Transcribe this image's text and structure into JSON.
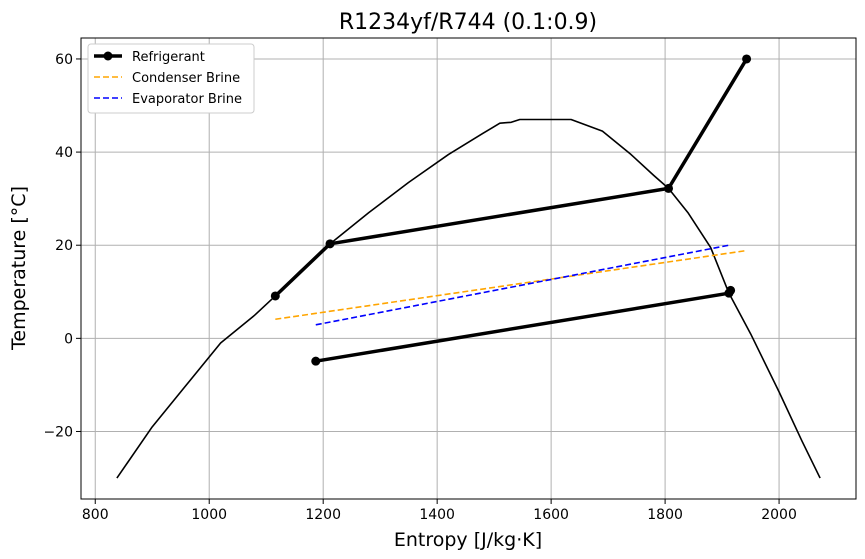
{
  "chart_data": {
    "type": "line",
    "title": "R1234yf/R744 (0.1:0.9)",
    "xlabel": "Entropy [J/kg·K]",
    "ylabel": "Temperature [°C]",
    "xlim": [
      775,
      2135
    ],
    "ylim": [
      -34.5,
      64.5
    ],
    "xticks": [
      800,
      1000,
      1200,
      1400,
      1600,
      1800,
      2000
    ],
    "yticks": [
      -20,
      0,
      20,
      40,
      60
    ],
    "xtick_labels": [
      "800",
      "1000",
      "1200",
      "1400",
      "1600",
      "1800",
      "2000"
    ],
    "ytick_labels": [
      "−20",
      "0",
      "20",
      "40",
      "60"
    ],
    "grid": true,
    "legend": {
      "position": "top-left",
      "entries": [
        "Refrigerant",
        "Condenser Brine",
        "Evaporator Brine"
      ]
    },
    "series": [
      {
        "name": "Refrigerant",
        "color": "#000000",
        "style": "solid-thick-markers",
        "segments": [
          [
            [
              1943,
              60
            ],
            [
              1806,
              32.2
            ]
          ],
          [
            [
              1806,
              32.2
            ],
            [
              1212,
              20.3
            ]
          ],
          [
            [
              1212,
              20.3
            ],
            [
              1116,
              9.1
            ]
          ],
          [
            [
              1187,
              -4.9
            ],
            [
              1912,
              9.7
            ]
          ],
          [
            [
              1915,
              10.3
            ],
            [
              1912,
              9.7
            ]
          ]
        ],
        "points": [
          [
            1943,
            60
          ],
          [
            1806,
            32.2
          ],
          [
            1212,
            20.3
          ],
          [
            1116,
            9.1
          ],
          [
            1187,
            -4.9
          ],
          [
            1912,
            9.7
          ],
          [
            1915,
            10.3
          ]
        ]
      },
      {
        "name": "Condenser Brine",
        "color": "#FFA500",
        "style": "dashed",
        "points": [
          [
            1116,
            4.1
          ],
          [
            1940,
            18.8
          ]
        ]
      },
      {
        "name": "Evaporator Brine",
        "color": "#0000FF",
        "style": "dashed",
        "points": [
          [
            1187,
            2.9
          ],
          [
            1912,
            20
          ]
        ]
      },
      {
        "name": "",
        "color": "#000000",
        "style": "solid-thin",
        "points": [
          [
            838,
            -30
          ],
          [
            900,
            -19
          ],
          [
            960,
            -10
          ],
          [
            1020,
            -1
          ],
          [
            1080,
            5
          ],
          [
            1116,
            9.1
          ],
          [
            1160,
            14.5
          ],
          [
            1212,
            20.3
          ],
          [
            1280,
            27
          ],
          [
            1350,
            33.5
          ],
          [
            1420,
            39.5
          ],
          [
            1480,
            44
          ],
          [
            1510,
            46.2
          ],
          [
            1530,
            46.4
          ],
          [
            1545,
            47
          ],
          [
            1635,
            47
          ],
          [
            1690,
            44.5
          ],
          [
            1740,
            39.5
          ],
          [
            1780,
            35
          ],
          [
            1806,
            32.2
          ],
          [
            1840,
            27
          ],
          [
            1880,
            19.5
          ],
          [
            1912,
            9.7
          ],
          [
            1950,
            1
          ],
          [
            2000,
            -11.5
          ],
          [
            2040,
            -22
          ],
          [
            2072,
            -30
          ]
        ]
      }
    ]
  }
}
